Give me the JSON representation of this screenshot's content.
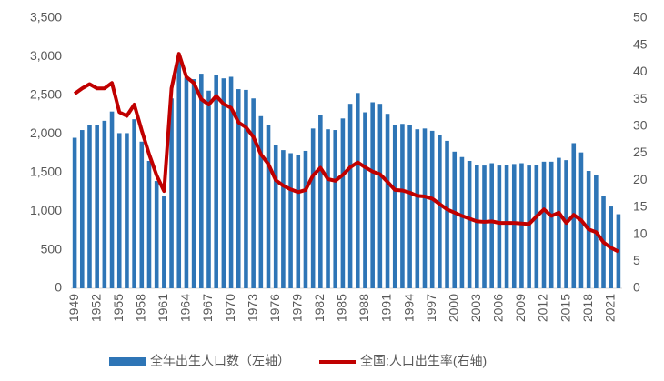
{
  "chart_data": {
    "type": "bar_line",
    "categories": [
      "1949",
      null,
      null,
      "1952",
      null,
      null,
      "1955",
      null,
      null,
      "1958",
      null,
      null,
      "1961",
      null,
      null,
      "1964",
      null,
      null,
      "1967",
      null,
      null,
      "1970",
      null,
      null,
      "1973",
      null,
      null,
      "1976",
      null,
      null,
      "1979",
      null,
      null,
      "1982",
      null,
      null,
      "1985",
      null,
      null,
      "1988",
      null,
      null,
      "1991",
      null,
      null,
      "1994",
      null,
      null,
      "1997",
      null,
      null,
      "2000",
      null,
      null,
      "2003",
      null,
      null,
      "2006",
      null,
      null,
      "2009",
      null,
      null,
      "2012",
      null,
      null,
      "2015",
      null,
      null,
      "2018",
      null,
      null,
      "2021",
      null
    ],
    "series": [
      {
        "name": "全年出生人口数（左轴）",
        "type": "bar",
        "color": "#2e75b6",
        "axis": "y",
        "values": [
          1950,
          2050,
          2120,
          2120,
          2170,
          2290,
          2010,
          2010,
          2190,
          1900,
          1650,
          1390,
          1190,
          2460,
          2960,
          2730,
          2710,
          2780,
          2560,
          2760,
          2720,
          2740,
          2580,
          2570,
          2460,
          2230,
          2110,
          1860,
          1790,
          1750,
          1730,
          1780,
          2070,
          2240,
          2060,
          2050,
          2200,
          2390,
          2530,
          2280,
          2410,
          2390,
          2260,
          2120,
          2130,
          2110,
          2060,
          2070,
          2040,
          1990,
          1910,
          1770,
          1700,
          1650,
          1600,
          1590,
          1620,
          1590,
          1600,
          1610,
          1620,
          1590,
          1600,
          1640,
          1640,
          1690,
          1660,
          1880,
          1760,
          1520,
          1470,
          1200,
          1060,
          960
        ]
      },
      {
        "name": "全国:人口出生率(右轴)",
        "type": "line",
        "color": "#c00000",
        "axis": "y2",
        "values": [
          36,
          37,
          37.8,
          37,
          37,
          38,
          32.6,
          31.9,
          34,
          29.2,
          24.8,
          20.9,
          18,
          37,
          43.4,
          39.1,
          38,
          35,
          34,
          35.6,
          34.1,
          33.4,
          30.7,
          29.8,
          28,
          24.8,
          23,
          20,
          19,
          18.3,
          17.8,
          18.2,
          20.9,
          22.3,
          20.2,
          19.9,
          21,
          22.4,
          23.3,
          22.4,
          21.6,
          21.1,
          19.7,
          18.2,
          18.1,
          17.7,
          17.1,
          17,
          16.6,
          15.6,
          14.6,
          14,
          13.4,
          12.9,
          12.4,
          12.3,
          12.4,
          12.1,
          12.1,
          12.1,
          12,
          11.9,
          13.3,
          14.6,
          13.4,
          14,
          12.1,
          13.6,
          12.6,
          10.9,
          10.4,
          8.5,
          7.5,
          6.8
        ]
      }
    ],
    "ylim": [
      0,
      3500
    ],
    "yticks": [
      0,
      500,
      {
        "value": 1000,
        "label": "1,000"
      },
      {
        "value": 1500,
        "label": "1,500"
      },
      {
        "value": 2000,
        "label": "2,000"
      },
      {
        "value": 2500,
        "label": "2,500"
      },
      {
        "value": 3000,
        "label": "3,000"
      },
      {
        "value": 3500,
        "label": "3,500"
      }
    ],
    "y2lim": [
      0,
      50
    ],
    "y2ticks": [
      0,
      5,
      10,
      15,
      20,
      25,
      30,
      35,
      40,
      45,
      50
    ],
    "grid": false,
    "legend": "bottom"
  }
}
